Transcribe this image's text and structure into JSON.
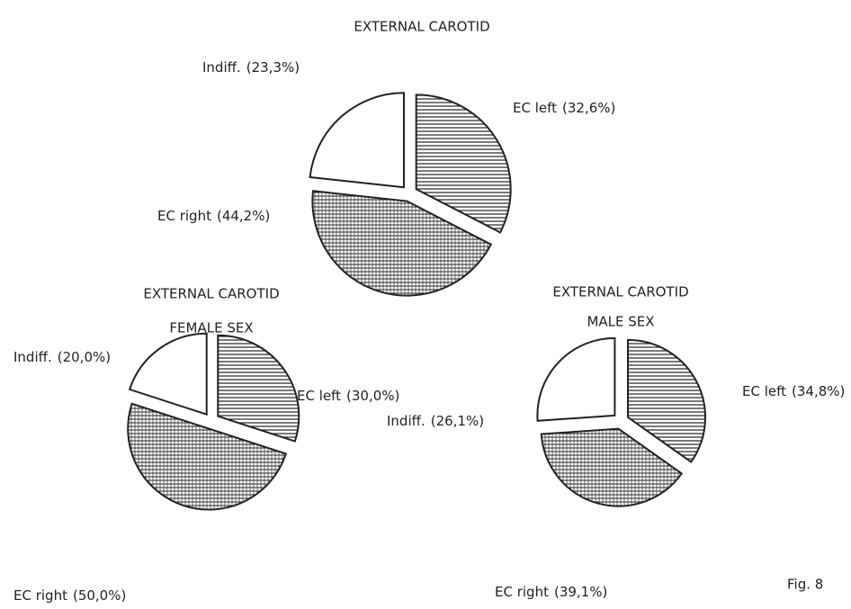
{
  "chart_data": [
    {
      "type": "pie",
      "title": "EXTERNAL CAROTID",
      "categories": [
        "EC left",
        "EC right",
        "Indiff."
      ],
      "values": [
        32.6,
        44.2,
        23.3
      ],
      "value_labels": [
        "(32,6%)",
        "(44,2%)",
        "(23,3%)"
      ]
    },
    {
      "type": "pie",
      "title": "EXTERNAL CAROTID",
      "subtitle": "FEMALE SEX",
      "categories": [
        "EC left",
        "EC right",
        "Indiff."
      ],
      "values": [
        30.0,
        50.0,
        20.0
      ],
      "value_labels": [
        "(30,0%)",
        "(50,0%)",
        "(20,0%)"
      ]
    },
    {
      "type": "pie",
      "title": "EXTERNAL CAROTID",
      "subtitle": "MALE SEX",
      "categories": [
        "EC left",
        "EC right",
        "Indiff."
      ],
      "values": [
        34.8,
        39.1,
        26.1
      ],
      "value_labels": [
        "(34,8%)",
        "(39,1%)",
        "(26,1%)"
      ]
    }
  ],
  "figure_label": "Fig. 8"
}
